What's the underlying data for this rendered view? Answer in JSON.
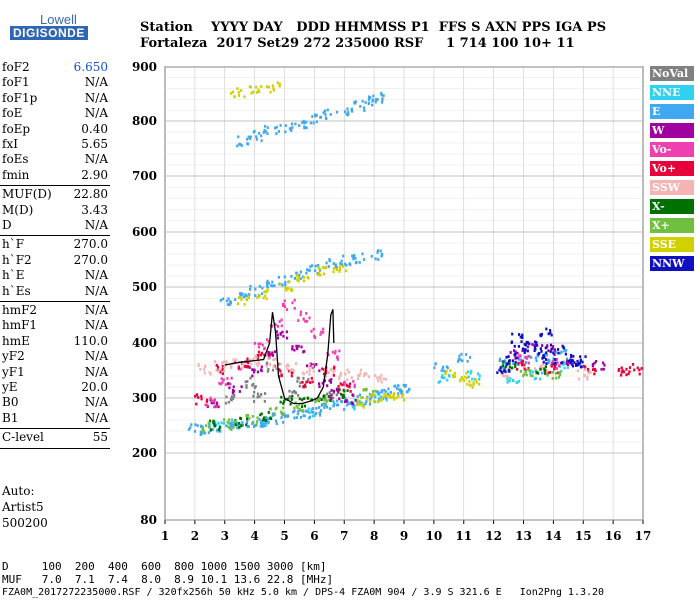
{
  "logo": {
    "line1": "Lowell",
    "line2": "DIGISONDE"
  },
  "header": {
    "row1": "Station    YYYY DAY   DDD HHMMSS P1  FFS S AXN PPS IGA PS",
    "row2": "Fortaleza  2017 Set29 272 235000 RSF     1 714 100 10+ 11"
  },
  "params": [
    {
      "group": [
        {
          "name": "foF2",
          "value": "6.650",
          "highlight": true
        },
        {
          "name": "foF1",
          "value": "N/A"
        },
        {
          "name": "foF1p",
          "value": "N/A"
        },
        {
          "name": "foE",
          "value": "N/A"
        },
        {
          "name": "foEp",
          "value": "0.40"
        },
        {
          "name": "fxI",
          "value": "5.65"
        },
        {
          "name": "foEs",
          "value": "N/A"
        },
        {
          "name": "fmin",
          "value": "2.90"
        }
      ]
    },
    {
      "group": [
        {
          "name": "MUF(D)",
          "value": "22.80"
        },
        {
          "name": "M(D)",
          "value": "3.43"
        },
        {
          "name": "D",
          "value": "N/A"
        }
      ]
    },
    {
      "group": [
        {
          "name": "h`F",
          "value": "270.0"
        },
        {
          "name": "h`F2",
          "value": "270.0"
        },
        {
          "name": "h`E",
          "value": "N/A"
        },
        {
          "name": "h`Es",
          "value": "N/A"
        }
      ]
    },
    {
      "group": [
        {
          "name": "hmF2",
          "value": "N/A"
        },
        {
          "name": "hmF1",
          "value": "N/A"
        },
        {
          "name": "hmE",
          "value": "110.0"
        },
        {
          "name": "yF2",
          "value": "N/A"
        },
        {
          "name": "yF1",
          "value": "N/A"
        },
        {
          "name": "yE",
          "value": "20.0"
        },
        {
          "name": "B0",
          "value": "N/A"
        },
        {
          "name": "B1",
          "value": "N/A"
        }
      ]
    },
    {
      "group": [
        {
          "name": "C-level",
          "value": "55"
        }
      ]
    }
  ],
  "auto": {
    "line1": "Auto:",
    "line2": "Artist5",
    "line3": "500200"
  },
  "legend": [
    {
      "label": "NoVal",
      "color": "#808080"
    },
    {
      "label": "NNE",
      "color": "#30d0f0"
    },
    {
      "label": "E",
      "color": "#40a8f0"
    },
    {
      "label": "W",
      "color": "#a000a0"
    },
    {
      "label": "Vo-",
      "color": "#f040b0"
    },
    {
      "label": "Vo+",
      "color": "#e8003a"
    },
    {
      "label": "SSW",
      "color": "#f4b4b4"
    },
    {
      "label": "X-",
      "color": "#007000"
    },
    {
      "label": "X+",
      "color": "#70c040"
    },
    {
      "label": "SSE",
      "color": "#d0d000"
    },
    {
      "label": "NNW",
      "color": "#1010c0"
    }
  ],
  "footer": {
    "row1": "D     100  200  400  600  800 1000 1500 3000 [km]",
    "row2": "MUF   7.0  7.1  7.4  8.0  8.9 10.1 13.6 22.8 [MHz]",
    "row3": "FZA0M_2017272235000.RSF / 320fx256h 50 kHz 5.0 km / DPS-4 FZA0M 904 / 3.9 S 321.6 E   Ion2Png 1.3.20"
  },
  "chart_data": {
    "type": "scatter",
    "xlim": [
      1,
      17
    ],
    "ylim": [
      80,
      900
    ],
    "x_ticks": [
      "1",
      "2",
      "3",
      "4",
      "5",
      "6",
      "7",
      "8",
      "9",
      "10",
      "11",
      "12",
      "13",
      "14",
      "15",
      "16",
      "17"
    ],
    "y_ticks": [
      "80",
      "200",
      "300",
      "400",
      "500",
      "600",
      "700",
      "800",
      "900"
    ],
    "grid": true,
    "legend_position": "right",
    "series": [
      {
        "name": "NoVal",
        "color": "#808080",
        "points": [
          [
            3.2,
            300
          ],
          [
            4.1,
            305
          ],
          [
            5.3,
            310
          ],
          [
            6.5,
            305
          ],
          [
            3.8,
            330
          ],
          [
            4.6,
            360
          ],
          [
            5.6,
            330
          ]
        ]
      },
      {
        "name": "NNE",
        "color": "#30d0f0",
        "points": [
          [
            2.8,
            250
          ],
          [
            3.4,
            255
          ],
          [
            4.2,
            260
          ],
          [
            5.8,
            275
          ],
          [
            7.4,
            290
          ],
          [
            8.2,
            300
          ],
          [
            10.3,
            335
          ],
          [
            11.3,
            345
          ],
          [
            12.6,
            335
          ],
          [
            13.4,
            345
          ],
          [
            14.3,
            360
          ]
        ]
      },
      {
        "name": "E",
        "color": "#40a8f0",
        "points": [
          [
            2.0,
            245
          ],
          [
            2.4,
            247
          ],
          [
            2.8,
            250
          ],
          [
            3.2,
            252
          ],
          [
            3.6,
            254
          ],
          [
            4.0,
            256
          ],
          [
            4.4,
            260
          ],
          [
            4.8,
            265
          ],
          [
            5.2,
            270
          ],
          [
            5.6,
            275
          ],
          [
            6.0,
            280
          ],
          [
            6.4,
            285
          ],
          [
            6.8,
            290
          ],
          [
            7.2,
            295
          ],
          [
            7.6,
            300
          ],
          [
            8.0,
            305
          ],
          [
            8.4,
            310
          ],
          [
            8.8,
            318
          ],
          [
            9.0,
            322
          ],
          [
            3.0,
            475
          ],
          [
            3.5,
            485
          ],
          [
            4.0,
            495
          ],
          [
            4.5,
            505
          ],
          [
            5.0,
            515
          ],
          [
            5.5,
            525
          ],
          [
            6.0,
            535
          ],
          [
            6.5,
            545
          ],
          [
            7.0,
            550
          ],
          [
            7.5,
            555
          ],
          [
            8.0,
            560
          ],
          [
            3.6,
            765
          ],
          [
            4.0,
            775
          ],
          [
            4.5,
            785
          ],
          [
            5.0,
            790
          ],
          [
            5.5,
            795
          ],
          [
            6.0,
            805
          ],
          [
            6.5,
            815
          ],
          [
            7.0,
            820
          ],
          [
            7.5,
            830
          ],
          [
            7.8,
            840
          ],
          [
            8.1,
            845
          ],
          [
            10.2,
            360
          ],
          [
            11.0,
            375
          ],
          [
            12.4,
            365
          ],
          [
            13.0,
            370
          ],
          [
            13.6,
            375
          ],
          [
            14.2,
            380
          ]
        ]
      },
      {
        "name": "W",
        "color": "#a000a0",
        "points": [
          [
            2.6,
            290
          ],
          [
            3.3,
            320
          ],
          [
            4.0,
            350
          ],
          [
            4.5,
            380
          ],
          [
            4.9,
            420
          ],
          [
            5.4,
            390
          ],
          [
            5.9,
            360
          ],
          [
            6.3,
            330
          ],
          [
            6.7,
            310
          ],
          [
            7.2,
            300
          ],
          [
            12.7,
            380
          ],
          [
            13.2,
            395
          ],
          [
            13.8,
            390
          ],
          [
            14.4,
            370
          ],
          [
            15.5,
            360
          ]
        ]
      },
      {
        "name": "Vo-",
        "color": "#f040b0",
        "points": [
          [
            2.5,
            295
          ],
          [
            3.0,
            330
          ],
          [
            3.5,
            360
          ],
          [
            4.2,
            400
          ],
          [
            4.7,
            440
          ],
          [
            5.1,
            470
          ],
          [
            5.6,
            450
          ],
          [
            6.1,
            420
          ],
          [
            6.6,
            380
          ],
          [
            7.1,
            330
          ],
          [
            13.0,
            370
          ],
          [
            14.0,
            365
          ]
        ]
      },
      {
        "name": "Vo+",
        "color": "#e8003a",
        "points": [
          [
            2.2,
            300
          ],
          [
            2.9,
            355
          ],
          [
            3.6,
            365
          ],
          [
            4.3,
            380
          ],
          [
            5.0,
            345
          ],
          [
            5.8,
            330
          ],
          [
            6.4,
            350
          ],
          [
            7.0,
            320
          ],
          [
            12.9,
            360
          ],
          [
            13.9,
            355
          ],
          [
            15.2,
            355
          ],
          [
            16.2,
            350
          ],
          [
            16.7,
            355
          ]
        ]
      },
      {
        "name": "SSW",
        "color": "#f4b4b4",
        "points": [
          [
            2.3,
            355
          ],
          [
            2.8,
            360
          ],
          [
            3.4,
            365
          ],
          [
            4.0,
            370
          ],
          [
            4.6,
            365
          ],
          [
            5.2,
            360
          ],
          [
            5.8,
            355
          ],
          [
            6.4,
            350
          ],
          [
            7.0,
            345
          ],
          [
            7.6,
            345
          ],
          [
            8.2,
            340
          ],
          [
            12.4,
            350
          ],
          [
            13.5,
            355
          ],
          [
            15.0,
            345
          ]
        ]
      },
      {
        "name": "X-",
        "color": "#007000",
        "points": [
          [
            2.7,
            253
          ],
          [
            3.5,
            258
          ],
          [
            4.3,
            268
          ],
          [
            5.0,
            300
          ],
          [
            5.7,
            295
          ],
          [
            6.3,
            305
          ],
          [
            6.9,
            310
          ],
          [
            12.5,
            360
          ],
          [
            13.6,
            355
          ]
        ]
      },
      {
        "name": "X+",
        "color": "#70c040",
        "points": [
          [
            2.4,
            250
          ],
          [
            3.1,
            255
          ],
          [
            3.9,
            262
          ],
          [
            4.7,
            280
          ],
          [
            5.5,
            285
          ],
          [
            6.2,
            300
          ],
          [
            7.8,
            310
          ],
          [
            13.1,
            350
          ],
          [
            14.0,
            345
          ]
        ]
      },
      {
        "name": "SSE",
        "color": "#d0d000",
        "points": [
          [
            7.6,
            295
          ],
          [
            8.0,
            300
          ],
          [
            8.4,
            302
          ],
          [
            8.8,
            305
          ],
          [
            10.5,
            345
          ],
          [
            11.0,
            340
          ],
          [
            11.3,
            330
          ],
          [
            3.6,
            480
          ],
          [
            4.2,
            490
          ],
          [
            5.0,
            505
          ],
          [
            5.6,
            520
          ],
          [
            6.2,
            530
          ],
          [
            6.8,
            535
          ],
          [
            3.4,
            855
          ],
          [
            4.0,
            860
          ],
          [
            4.6,
            865
          ]
        ]
      },
      {
        "name": "NNW",
        "color": "#1010c0",
        "points": [
          [
            12.3,
            350
          ],
          [
            12.6,
            370
          ],
          [
            12.9,
            390
          ],
          [
            13.2,
            400
          ],
          [
            13.5,
            385
          ],
          [
            13.8,
            370
          ],
          [
            14.1,
            390
          ],
          [
            14.4,
            375
          ],
          [
            14.7,
            365
          ],
          [
            15.0,
            370
          ],
          [
            12.8,
            410
          ],
          [
            13.7,
            420
          ]
        ]
      }
    ],
    "trace": {
      "name": "",
      "color": "#000000",
      "points": [
        [
          3.0,
          360
        ],
        [
          3.5,
          365
        ],
        [
          4.0,
          368
        ],
        [
          4.3,
          370
        ],
        [
          4.5,
          400
        ],
        [
          4.6,
          455
        ],
        [
          4.7,
          420
        ],
        [
          4.8,
          340
        ],
        [
          5.0,
          300
        ],
        [
          5.3,
          290
        ],
        [
          5.6,
          290
        ],
        [
          5.9,
          295
        ],
        [
          6.1,
          300
        ],
        [
          6.3,
          320
        ],
        [
          6.45,
          380
        ],
        [
          6.55,
          450
        ],
        [
          6.62,
          460
        ],
        [
          6.65,
          400
        ]
      ]
    }
  }
}
